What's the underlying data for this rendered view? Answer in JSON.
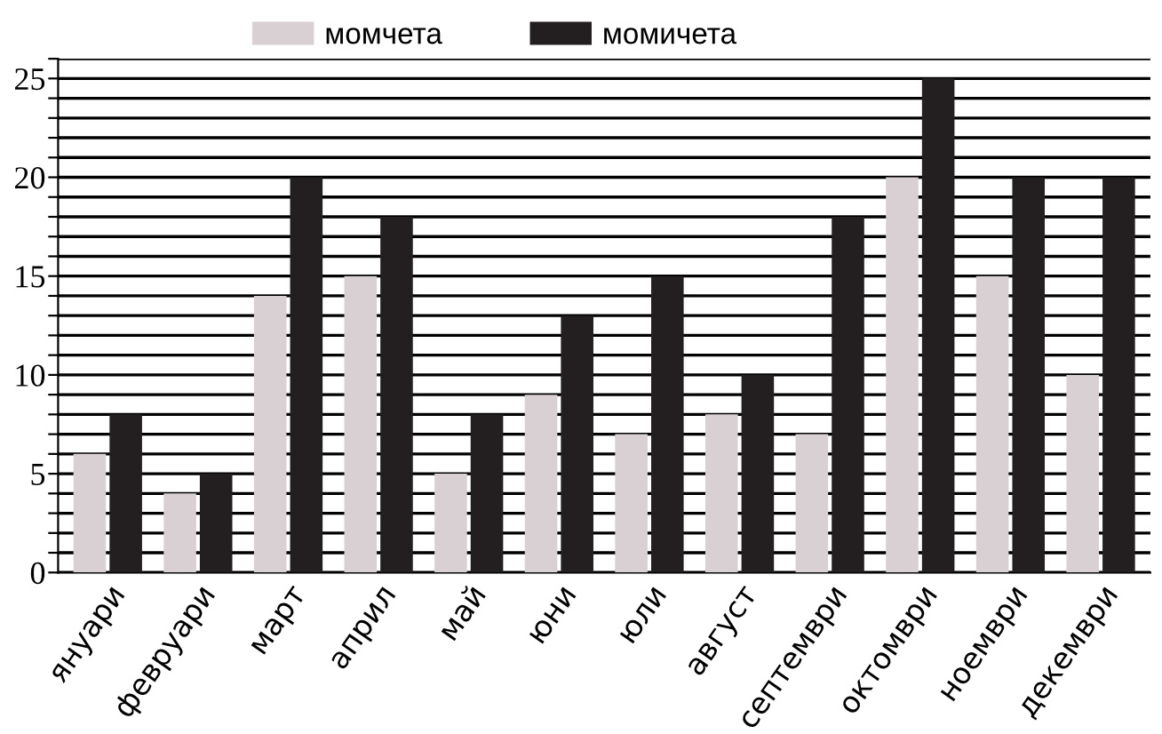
{
  "chart_data": {
    "type": "bar",
    "categories": [
      "януари",
      "февруари",
      "март",
      "април",
      "май",
      "юни",
      "юли",
      "август",
      "септември",
      "октомври",
      "ноември",
      "декември"
    ],
    "series": [
      {
        "name": "момчета",
        "color": "#d8d0d2",
        "values": [
          6,
          4,
          14,
          15,
          5,
          9,
          7,
          8,
          7,
          20,
          15,
          10
        ]
      },
      {
        "name": "момичета",
        "color": "#231f20",
        "values": [
          8,
          5,
          20,
          18,
          8,
          13,
          15,
          10,
          18,
          25,
          20,
          20
        ]
      }
    ],
    "ylim": [
      0,
      26
    ],
    "yticks": [
      0,
      {
        "value": 1,
        "label": null
      },
      {
        "value": 2,
        "label": null
      },
      {
        "value": 3,
        "label": null
      },
      {
        "value": 4,
        "label": null
      },
      5,
      {
        "value": 6,
        "label": null
      },
      {
        "value": 7,
        "label": null
      },
      {
        "value": 8,
        "label": null
      },
      {
        "value": 9,
        "label": null
      },
      10,
      {
        "value": 11,
        "label": null
      },
      {
        "value": 12,
        "label": null
      },
      {
        "value": 13,
        "label": null
      },
      {
        "value": 14,
        "label": null
      },
      15,
      {
        "value": 16,
        "label": null
      },
      {
        "value": 17,
        "label": null
      },
      {
        "value": 18,
        "label": null
      },
      {
        "value": 19,
        "label": null
      },
      20,
      {
        "value": 21,
        "label": null
      },
      {
        "value": 22,
        "label": null
      },
      {
        "value": 23,
        "label": null
      },
      {
        "value": 24,
        "label": null
      },
      25,
      {
        "value": 26,
        "label": null
      }
    ],
    "grid": "y",
    "legend": "top"
  }
}
